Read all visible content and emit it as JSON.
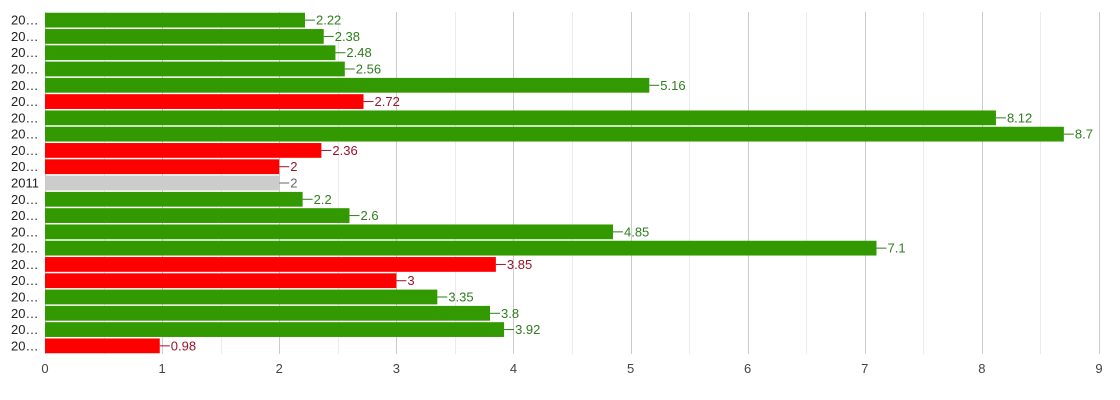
{
  "chart_data": {
    "type": "bar",
    "orientation": "horizontal",
    "categories": [
      "20…",
      "20…",
      "20…",
      "20…",
      "20…",
      "20…",
      "20…",
      "20…",
      "20…",
      "20…",
      "2011",
      "20…",
      "20…",
      "20…",
      "20…",
      "20…",
      "20…",
      "20…",
      "20…",
      "20…",
      "20…"
    ],
    "values": [
      2.22,
      2.38,
      2.48,
      2.56,
      5.16,
      2.72,
      8.12,
      8.7,
      2.36,
      2,
      2,
      2.2,
      2.6,
      4.85,
      7.1,
      3.85,
      3,
      3.35,
      3.8,
      3.92,
      0.98
    ],
    "data_labels": [
      "2.22",
      "2.38",
      "2.48",
      "2.56",
      "5.16",
      "2.72",
      "8.12",
      "8.7",
      "2.36",
      "2",
      "2",
      "2.2",
      "2.6",
      "4.85",
      "7.1",
      "3.85",
      "3",
      "3.35",
      "3.8",
      "3.92",
      "0.98"
    ],
    "bar_status": [
      "up",
      "up",
      "up",
      "up",
      "up",
      "down",
      "up",
      "up",
      "down",
      "down",
      "neutral",
      "up",
      "up",
      "up",
      "up",
      "down",
      "down",
      "up",
      "up",
      "up",
      "down"
    ],
    "colors": {
      "up": "#339900",
      "down": "#ff0000",
      "neutral": "#cccccc",
      "up_label": "#2e7d1e",
      "down_label": "#99142a",
      "neutral_label": "#666666"
    },
    "xlim": [
      0,
      9
    ],
    "x_ticks": [
      "0",
      "1",
      "2",
      "3",
      "4",
      "5",
      "6",
      "7",
      "8",
      "9"
    ],
    "grid": true,
    "legend": "none",
    "title": "",
    "xlabel": "",
    "ylabel": ""
  }
}
